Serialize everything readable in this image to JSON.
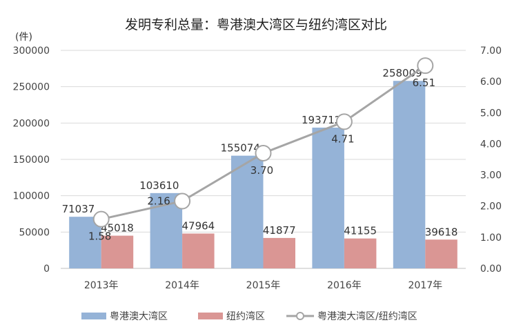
{
  "chart_data": {
    "type": "bar",
    "title": "发明专利总量：粤港澳大湾区与纽约湾区对比",
    "ylabel": "(件)",
    "categories": [
      "2013年",
      "2014年",
      "2015年",
      "2016年",
      "2017年"
    ],
    "ylim": [
      0,
      300000
    ],
    "yticks": [
      "0",
      "50000",
      "100000",
      "150000",
      "200000",
      "250000",
      "300000"
    ],
    "y2lim": [
      0,
      7
    ],
    "y2ticks": [
      "0.00",
      "1.00",
      "2.00",
      "3.00",
      "4.00",
      "5.00",
      "6.00",
      "7.00"
    ],
    "grid": true,
    "legend_position": "bottom",
    "series": [
      {
        "name": "粤港澳大湾区",
        "type": "bar",
        "axis": "left",
        "color": "#95b3d7",
        "values": [
          71037,
          103610,
          155074,
          193712,
          258009
        ]
      },
      {
        "name": "纽约湾区",
        "type": "bar",
        "axis": "left",
        "color": "#da9694",
        "values": [
          45018,
          47964,
          41877,
          41155,
          39618
        ]
      },
      {
        "name": "粤港澳大湾区/纽约湾区",
        "type": "line",
        "axis": "right",
        "color": "#a5a5a5",
        "values": [
          1.58,
          2.16,
          3.7,
          4.71,
          6.51
        ],
        "labels": [
          "1.58",
          "2.16",
          "3.70",
          "4.71",
          "6.51"
        ]
      }
    ]
  }
}
